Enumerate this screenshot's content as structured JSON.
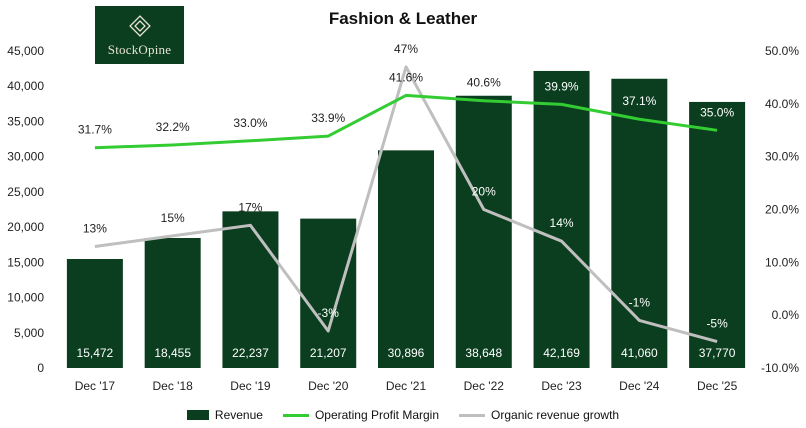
{
  "logo": {
    "text": "StockOpine"
  },
  "colors": {
    "bar": "#0b3d1f",
    "margin_line": "#33cc33",
    "growth_line": "#bfbfbf",
    "axis_text": "#222222",
    "logo_bg": "#0b3d1f"
  },
  "chart_data": {
    "type": "bar",
    "title": "Fashion & Leather",
    "categories": [
      "Dec '17",
      "Dec '18",
      "Dec '19",
      "Dec '20",
      "Dec '21",
      "Dec '22",
      "Dec '23",
      "Dec '24",
      "Dec '25"
    ],
    "series": [
      {
        "name": "Revenue",
        "type": "bar",
        "axis": "left",
        "values": [
          15472,
          18455,
          22237,
          21207,
          30896,
          38648,
          42169,
          41060,
          37770
        ],
        "labels": [
          "15,472",
          "18,455",
          "22,237",
          "21,207",
          "30,896",
          "38,648",
          "42,169",
          "41,060",
          "37,770"
        ]
      },
      {
        "name": "Operating Profit Margin",
        "type": "line",
        "axis": "right",
        "values": [
          31.7,
          32.2,
          33.0,
          33.9,
          41.6,
          40.6,
          39.9,
          37.1,
          35.0
        ],
        "labels": [
          "31.7%",
          "32.2%",
          "33.0%",
          "33.9%",
          "41.6%",
          "40.6%",
          "39.9%",
          "37.1%",
          "35.0%"
        ]
      },
      {
        "name": "Organic revenue growth",
        "type": "line",
        "axis": "right",
        "values": [
          13,
          15,
          17,
          -3,
          47,
          20,
          14,
          -1,
          -5
        ],
        "labels": [
          "13%",
          "15%",
          "17%",
          "-3%",
          "47%",
          "20%",
          "14%",
          "-1%",
          "-5%"
        ]
      }
    ],
    "left_axis": {
      "ylim": [
        0,
        45000
      ],
      "ticks": [
        0,
        5000,
        10000,
        15000,
        20000,
        25000,
        30000,
        35000,
        40000,
        45000
      ],
      "tick_labels": [
        "0",
        "5,000",
        "10,000",
        "15,000",
        "20,000",
        "25,000",
        "30,000",
        "35,000",
        "40,000",
        "45,000"
      ]
    },
    "right_axis": {
      "ylim": [
        -10,
        50
      ],
      "ticks": [
        -10,
        0,
        10,
        20,
        30,
        40,
        50
      ],
      "tick_labels": [
        "-10.0%",
        "0.0%",
        "10.0%",
        "20.0%",
        "30.0%",
        "40.0%",
        "50.0%"
      ]
    },
    "grid": false,
    "legend": "bottom-center"
  }
}
